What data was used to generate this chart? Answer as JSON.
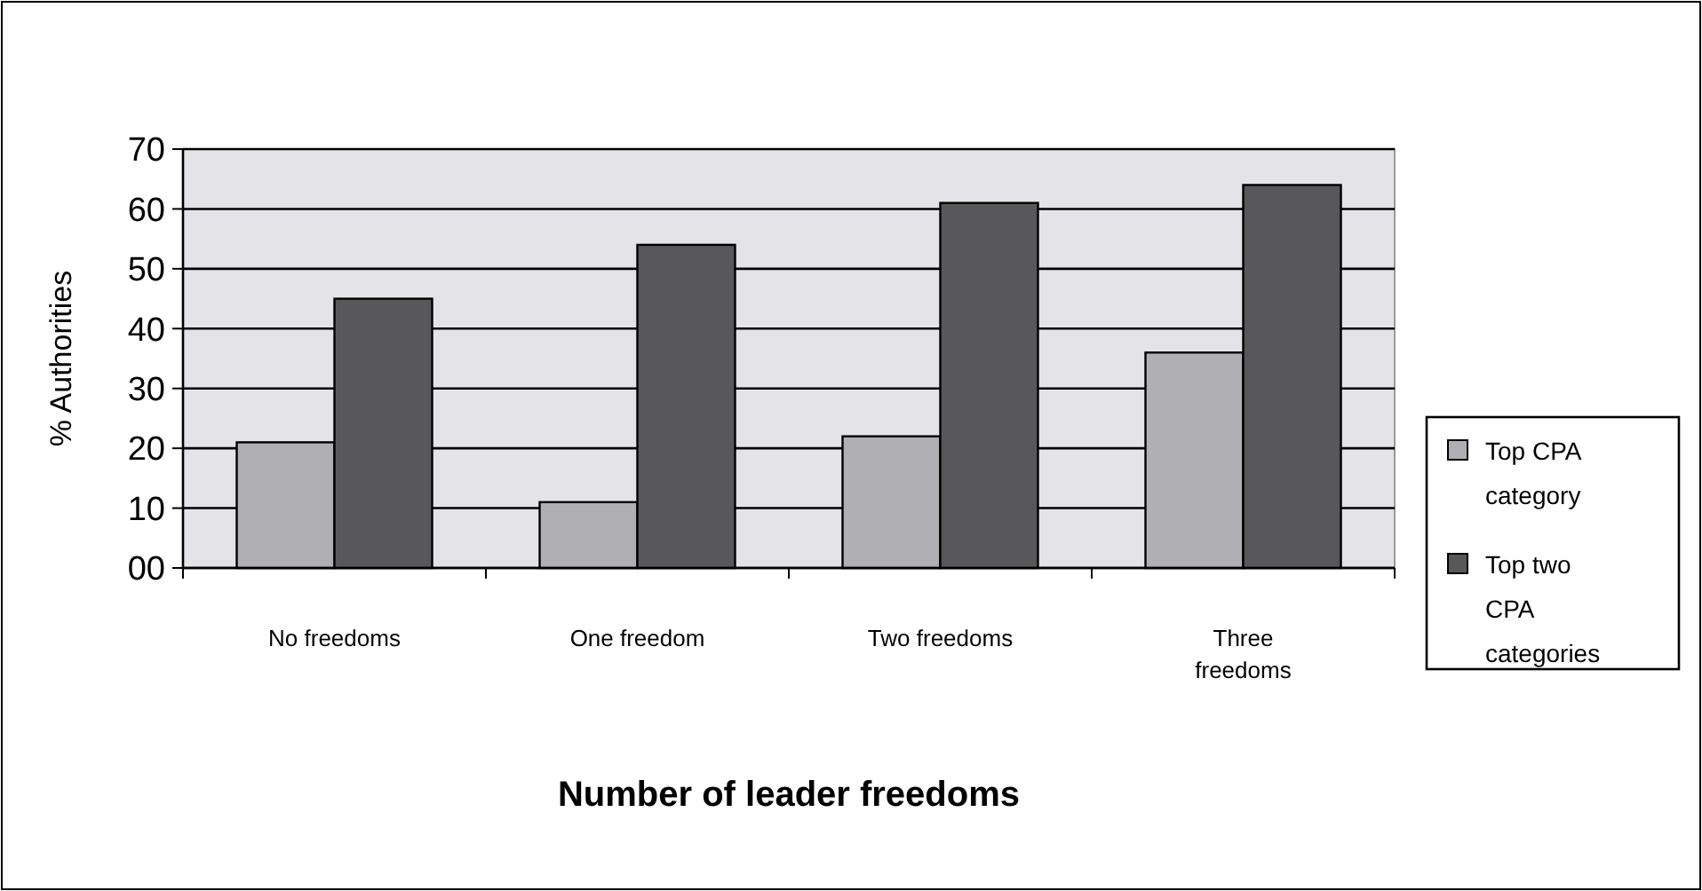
{
  "chart_data": {
    "type": "bar",
    "xlabel": "Number of leader freedoms",
    "ylabel": "% Authorities",
    "categories": [
      "No freedoms",
      "One freedom",
      "Two freedoms",
      "Three freedoms"
    ],
    "series": [
      {
        "name": "Top CPA category",
        "color": "#b0b0b4",
        "values": [
          21,
          11,
          22,
          36
        ]
      },
      {
        "name": "Top two CPA categories",
        "color": "#58585b",
        "values": [
          45,
          54,
          61,
          64
        ]
      }
    ],
    "ylim": [
      0,
      70
    ],
    "yticks": [
      {
        "value": 0,
        "label": "00"
      },
      10,
      20,
      30,
      40,
      50,
      60,
      70
    ],
    "grid": "y",
    "legend": "right"
  }
}
